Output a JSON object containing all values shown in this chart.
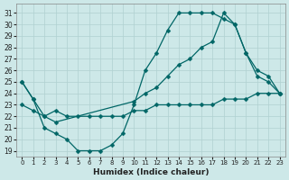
{
  "xlabel": "Humidex (Indice chaleur)",
  "bg_color": "#cde8e8",
  "grid_color": "#b0d0d0",
  "line_color": "#006666",
  "xlim": [
    -0.5,
    23.5
  ],
  "ylim": [
    18.5,
    31.8
  ],
  "yticks": [
    19,
    20,
    21,
    22,
    23,
    24,
    25,
    26,
    27,
    28,
    29,
    30,
    31
  ],
  "xticks": [
    0,
    1,
    2,
    3,
    4,
    5,
    6,
    7,
    8,
    9,
    10,
    11,
    12,
    13,
    14,
    15,
    16,
    17,
    18,
    19,
    20,
    21,
    22,
    23
  ],
  "line1_x": [
    0,
    1,
    2,
    3,
    4,
    5,
    6,
    7,
    8,
    9,
    10,
    11,
    12,
    13,
    14,
    15,
    16,
    17,
    18,
    19,
    20,
    21,
    22,
    23
  ],
  "line1_y": [
    25.0,
    23.5,
    21.0,
    20.5,
    20.0,
    19.0,
    19.0,
    19.0,
    19.5,
    20.5,
    23.0,
    26.0,
    27.5,
    29.5,
    31.0,
    31.0,
    31.0,
    31.0,
    30.5,
    30.0,
    27.5,
    25.5,
    25.0,
    24.0
  ],
  "line2_x": [
    0,
    1,
    2,
    3,
    10,
    11,
    12,
    13,
    14,
    15,
    16,
    17,
    18,
    19,
    20,
    21,
    22,
    23
  ],
  "line2_y": [
    25.0,
    23.5,
    22.0,
    21.5,
    23.3,
    24.0,
    24.5,
    25.5,
    26.5,
    27.0,
    28.0,
    28.5,
    31.0,
    30.0,
    27.5,
    26.0,
    25.5,
    24.0
  ],
  "line3_x": [
    0,
    1,
    2,
    3,
    4,
    5,
    6,
    7,
    8,
    9,
    10,
    11,
    12,
    13,
    14,
    15,
    16,
    17,
    18,
    19,
    20,
    21,
    22,
    23
  ],
  "line3_y": [
    23.0,
    22.5,
    22.0,
    22.5,
    22.0,
    22.0,
    22.0,
    22.0,
    22.0,
    22.0,
    22.5,
    22.5,
    23.0,
    23.0,
    23.0,
    23.0,
    23.0,
    23.0,
    23.5,
    23.5,
    23.5,
    24.0,
    24.0,
    24.0
  ]
}
